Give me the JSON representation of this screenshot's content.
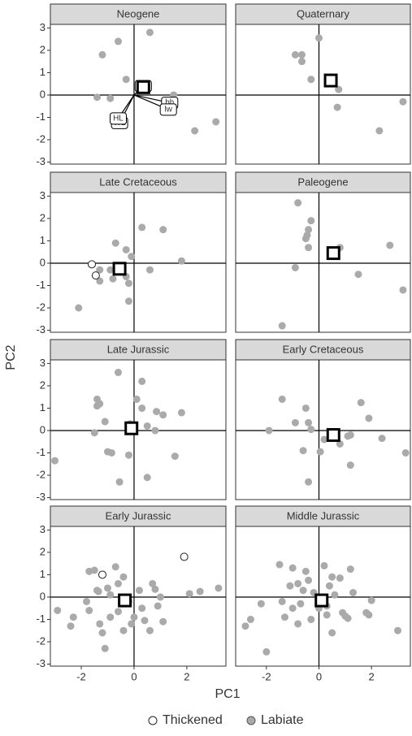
{
  "xlabel": "PC1",
  "ylabel": "PC2",
  "xlim": [
    -3.17,
    3.48
  ],
  "ylim": [
    -3.09,
    3.16
  ],
  "xticks": [
    -2,
    0,
    2
  ],
  "yticks": [
    -3,
    -2,
    -1,
    0,
    1,
    2,
    3
  ],
  "chart_data": [
    {
      "type": "scatter",
      "title": "Neogene",
      "series": [
        {
          "name": "Labiate",
          "color": "#aaaaaa",
          "x": [
            -1.2,
            -0.6,
            0.6,
            -0.3,
            -1.4,
            -0.9,
            1.5,
            1.3,
            2.3,
            3.1
          ],
          "y": [
            1.8,
            2.4,
            2.8,
            0.7,
            -0.1,
            -0.15,
            0.0,
            -0.5,
            -1.6,
            -1.2
          ]
        }
      ],
      "centroid": {
        "x": 0.35,
        "y": 0.35
      },
      "arrows": [
        {
          "label": "ba",
          "x": 0.35,
          "y": 0.4
        },
        {
          "label": "bh",
          "x": 1.35,
          "y": -0.35
        },
        {
          "label": "lw",
          "x": 1.3,
          "y": -0.65
        },
        {
          "label": "WL",
          "x": -0.55,
          "y": -1.25
        },
        {
          "label": "HL",
          "x": -0.6,
          "y": -1.05
        }
      ]
    },
    {
      "type": "scatter",
      "title": "Quaternary",
      "series": [
        {
          "name": "Labiate",
          "color": "#aaaaaa",
          "x": [
            -0.9,
            -0.65,
            -0.65,
            0.0,
            -0.3,
            0.75,
            0.7,
            2.3,
            3.2
          ],
          "y": [
            1.8,
            1.8,
            1.5,
            2.55,
            0.7,
            0.25,
            -0.55,
            -1.6,
            -0.3
          ]
        }
      ],
      "centroid": {
        "x": 0.45,
        "y": 0.65
      }
    },
    {
      "type": "scatter",
      "title": "Late Cretaceous",
      "series": [
        {
          "name": "Labiate",
          "color": "#aaaaaa",
          "x": [
            -0.7,
            -0.3,
            0.3,
            1.1,
            -1.3,
            -0.9,
            -1.3,
            -0.8,
            -0.2,
            -0.3,
            0.6,
            -0.2,
            -2.1,
            1.8,
            -0.1
          ],
          "y": [
            0.9,
            0.6,
            1.6,
            1.5,
            -0.3,
            -0.3,
            -0.8,
            -0.7,
            -0.9,
            -0.6,
            -0.3,
            -1.7,
            -2.0,
            0.1,
            0.3
          ]
        },
        {
          "name": "Thickened",
          "color": "#ffffff",
          "x": [
            -1.6,
            -1.45
          ],
          "y": [
            -0.05,
            -0.55
          ]
        }
      ],
      "centroid": {
        "x": -0.55,
        "y": -0.25
      }
    },
    {
      "type": "scatter",
      "title": "Paleogene",
      "series": [
        {
          "name": "Labiate",
          "color": "#aaaaaa",
          "x": [
            -0.8,
            -0.3,
            -0.4,
            -0.45,
            -0.5,
            -0.4,
            -0.9,
            0.8,
            1.5,
            2.7,
            3.2,
            -1.4
          ],
          "y": [
            2.7,
            1.9,
            1.5,
            1.25,
            1.1,
            0.7,
            -0.2,
            0.7,
            -0.5,
            0.8,
            -1.2,
            -2.8
          ]
        }
      ],
      "centroid": {
        "x": 0.55,
        "y": 0.45
      }
    },
    {
      "type": "scatter",
      "title": "Late Jurassic",
      "series": [
        {
          "name": "Labiate",
          "color": "#aaaaaa",
          "x": [
            -0.6,
            0.3,
            -1.4,
            -1.4,
            -1.3,
            0.1,
            0.3,
            0.85,
            1.1,
            1.8,
            -1.1,
            -0.15,
            0.5,
            0.8,
            -1.0,
            -0.85,
            -0.2,
            1.55,
            -3.0,
            -0.55,
            0.5,
            -1.5
          ],
          "y": [
            2.6,
            2.2,
            1.4,
            1.1,
            1.2,
            1.4,
            1.0,
            0.85,
            0.7,
            0.8,
            0.4,
            0.3,
            0.2,
            0.0,
            -0.95,
            -1.0,
            -1.1,
            -1.15,
            -1.35,
            -2.3,
            -2.1,
            -0.1
          ]
        }
      ],
      "centroid": {
        "x": -0.1,
        "y": 0.1
      }
    },
    {
      "type": "scatter",
      "title": "Early Cretaceous",
      "series": [
        {
          "name": "Labiate",
          "color": "#aaaaaa",
          "x": [
            -1.4,
            -0.5,
            1.6,
            1.9,
            -0.9,
            -0.4,
            -1.9,
            0.2,
            0.8,
            1.1,
            1.2,
            2.4,
            3.3,
            -0.6,
            0.05,
            1.2,
            -0.4,
            -0.3
          ],
          "y": [
            1.4,
            1.0,
            1.25,
            0.55,
            0.35,
            0.35,
            0.0,
            -0.4,
            -0.6,
            -0.25,
            -0.2,
            -0.35,
            -1.0,
            -0.9,
            -0.95,
            -1.55,
            -2.3,
            0.05
          ]
        }
      ],
      "centroid": {
        "x": 0.55,
        "y": -0.2
      }
    },
    {
      "type": "scatter",
      "title": "Early Jurassic",
      "series": [
        {
          "name": "Labiate",
          "color": "#aaaaaa",
          "x": [
            -1.7,
            -1.5,
            -0.7,
            -0.4,
            -0.6,
            -1.0,
            -1.4,
            -1.35,
            -0.9,
            -0.2,
            0.2,
            0.7,
            0.8,
            1.0,
            2.1,
            2.5,
            3.2,
            -2.9,
            -2.3,
            -2.4,
            -1.7,
            -1.3,
            -1.2,
            -1.1,
            -0.9,
            -0.6,
            -0.4,
            0.0,
            0.3,
            0.4,
            0.6,
            0.9,
            1.1,
            -0.1,
            -1.8
          ],
          "y": [
            1.15,
            1.2,
            1.35,
            0.9,
            0.6,
            0.4,
            0.3,
            0.25,
            0.1,
            -0.2,
            0.3,
            0.6,
            0.35,
            0.0,
            0.15,
            0.25,
            0.4,
            -0.6,
            -0.9,
            -1.3,
            -0.6,
            -1.2,
            -1.6,
            -2.3,
            -0.9,
            -0.65,
            -1.5,
            -0.9,
            -0.5,
            -1.05,
            -1.5,
            -0.4,
            -1.1,
            -1.2,
            -0.2
          ]
        },
        {
          "name": "Thickened",
          "color": "#ffffff",
          "x": [
            -1.2,
            1.9
          ],
          "y": [
            1.0,
            1.8
          ]
        }
      ],
      "centroid": {
        "x": -0.35,
        "y": -0.15
      }
    },
    {
      "type": "scatter",
      "title": "Middle Jurassic",
      "series": [
        {
          "name": "Labiate",
          "color": "#aaaaaa",
          "x": [
            -1.5,
            -1.0,
            -0.5,
            0.2,
            1.2,
            0.8,
            0.5,
            -0.4,
            -0.8,
            -1.1,
            -0.6,
            -0.2,
            0.4,
            0.6,
            1.3,
            2.0,
            -2.2,
            -2.6,
            -2.8,
            -1.4,
            -1.0,
            -0.7,
            -1.3,
            -0.8,
            0.3,
            0.5,
            0.9,
            1.0,
            1.1,
            1.8,
            1.9,
            3.0,
            -2.0,
            0.0,
            0.3,
            -0.3
          ],
          "y": [
            1.45,
            1.3,
            1.15,
            1.4,
            1.25,
            0.85,
            0.9,
            0.75,
            0.6,
            0.5,
            0.3,
            0.2,
            0.5,
            0.1,
            0.2,
            -0.15,
            -0.3,
            -1.0,
            -1.3,
            -0.2,
            -0.5,
            -0.3,
            -0.9,
            -1.2,
            -0.8,
            -1.6,
            -0.7,
            -0.85,
            -0.95,
            -0.7,
            -0.8,
            -1.5,
            -2.45,
            -0.5,
            -0.4,
            -1.0
          ]
        }
      ],
      "centroid": {
        "x": 0.1,
        "y": -0.15
      }
    }
  ]
}
